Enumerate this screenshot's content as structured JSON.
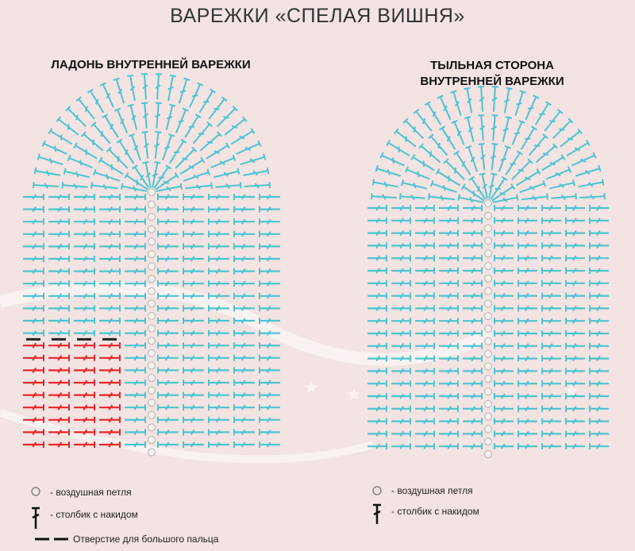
{
  "page": {
    "title": "ВАРЕЖКИ «СПЕЛАЯ ВИШНЯ»"
  },
  "panels": {
    "left": {
      "title": "ЛАДОНЬ ВНУТРЕННЕЙ ВАРЕЖКИ"
    },
    "right": {
      "title_line1": "ТЫЛЬНАЯ СТОРОНА",
      "title_line2": "ВНУТРЕННЕЙ ВАРЕЖКИ"
    }
  },
  "legend_left": {
    "chain": "- воздушная петля",
    "dc": "- столбик с накидом",
    "thumb": "Отверстие для большого пальца"
  },
  "legend_right": {
    "chain": "- воздушная петля",
    "dc": "- столбик с накидом"
  },
  "colors": {
    "background": "#f3e3e2",
    "stitch": "#4cc4d0",
    "thumb_stitch": "#e8262a",
    "chain": "#bfbfbf",
    "thumb_marker": "#222222"
  },
  "diagram": {
    "left_panel": {
      "body_rows": 21,
      "stitches_each_side": 5,
      "thumb_rows": 9,
      "thumb_stitches": 4,
      "top_rounds": 4
    },
    "right_panel": {
      "body_rows": 20,
      "stitches_each_side": 5,
      "top_rounds": 4
    }
  },
  "icons": {
    "chain": "circle-icon",
    "dc": "double-crochet-icon",
    "thumb": "dash-line-icon"
  }
}
